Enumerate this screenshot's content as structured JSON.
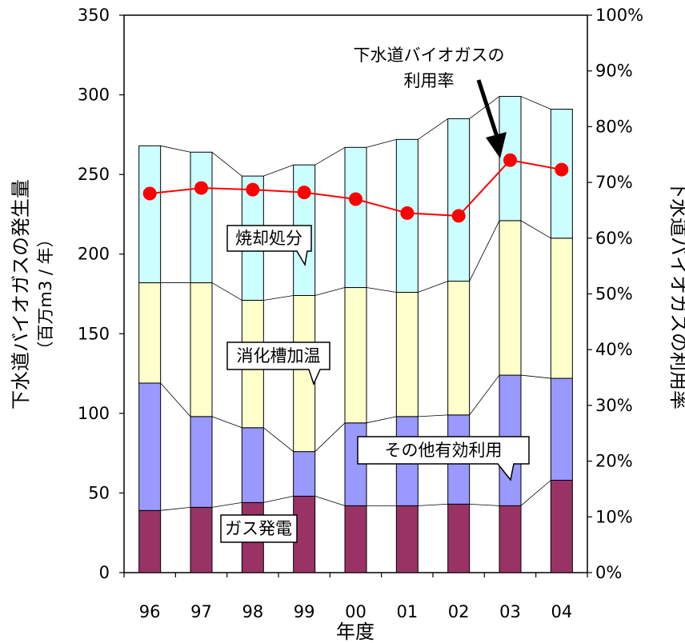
{
  "chart_data": {
    "type": "bar",
    "stacked": true,
    "categories": [
      "96",
      "97",
      "98",
      "99",
      "00",
      "01",
      "02",
      "03",
      "04"
    ],
    "series": [
      {
        "name": "ガス発電",
        "color": "#993366",
        "values": [
          39,
          41,
          44,
          48,
          42,
          42,
          43,
          42,
          58
        ]
      },
      {
        "name": "その他有効利用",
        "color": "#9999ff",
        "values": [
          80,
          57,
          47,
          28,
          52,
          56,
          56,
          82,
          64
        ]
      },
      {
        "name": "消化槽加温",
        "color": "#ffffcc",
        "values": [
          63,
          84,
          80,
          98,
          85,
          78,
          84,
          97,
          88
        ]
      },
      {
        "name": "焼却処分",
        "color": "#ccffff",
        "values": [
          86,
          82,
          78,
          82,
          88,
          96,
          102,
          78,
          81
        ]
      }
    ],
    "line_series": {
      "name": "下水道バイオガスの利用率",
      "color": "#ff0000",
      "axis": "right",
      "values": [
        68,
        69,
        68.7,
        68.2,
        67,
        64.5,
        64,
        74,
        72.3
      ]
    },
    "y_left": {
      "label_line1": "下水道バイオガスの発生量",
      "label_line2": "（百万m3 / 年）",
      "ylim": [
        0,
        350
      ],
      "ticks": [
        "0",
        "50",
        "100",
        "150",
        "200",
        "250",
        "300",
        "350"
      ]
    },
    "y_right": {
      "label": "下水道バイオガスの利用率",
      "ylim": [
        0,
        100
      ],
      "ticks": [
        "0%",
        "10%",
        "20%",
        "30%",
        "40%",
        "50%",
        "60%",
        "70%",
        "80%",
        "90%",
        "100%"
      ]
    },
    "xlabel": "年度",
    "annotations": {
      "callout_1": "焼却処分",
      "callout_2": "消化槽加温",
      "callout_3": "その他有効利用",
      "callout_4": "ガス発電",
      "arrow_label_line1": "下水道バイオガスの",
      "arrow_label_line2": "利用率"
    }
  }
}
